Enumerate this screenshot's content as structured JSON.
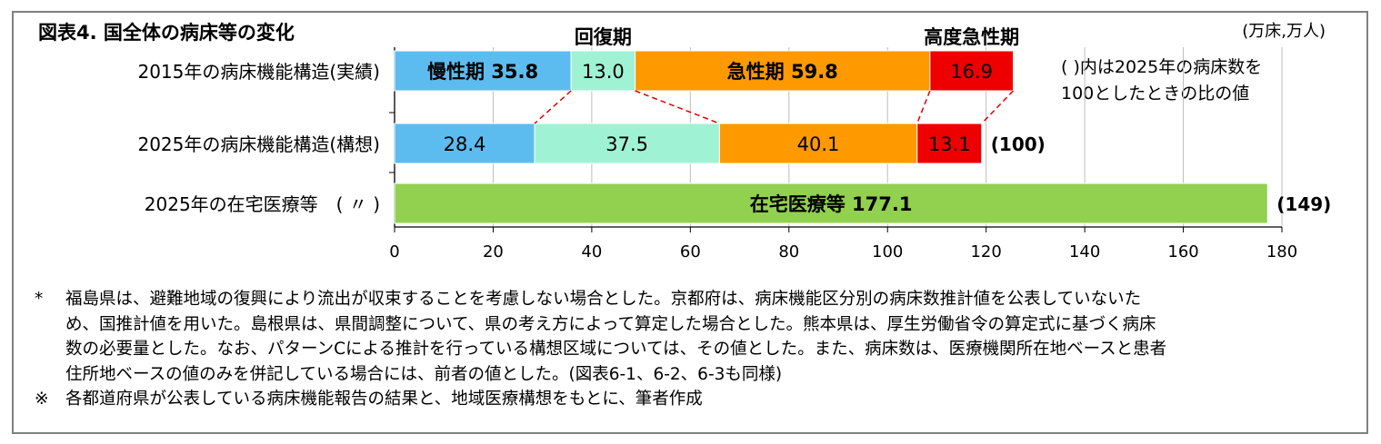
{
  "title": "図表4. 国全体の病床等の変化",
  "unit": "(万床,万人)",
  "footnote_ratio": [
    "( )内は2025年の病床数を",
    "100としたときの比の値"
  ],
  "chart_data": {
    "type": "bar",
    "orientation": "horizontal",
    "stacked": true,
    "xlim": [
      0,
      180
    ],
    "ticks": [
      0,
      20,
      40,
      60,
      80,
      100,
      120,
      140,
      160,
      180
    ],
    "grid": true,
    "rows": [
      {
        "label": "2015年の病床機能構造(実績)",
        "segments": [
          {
            "name": "慢性期",
            "value": 35.8,
            "label": "慢性期 35.8",
            "color": "#5cbcf0"
          },
          {
            "name": "回復期",
            "value": 13.0,
            "label": "13.0",
            "color": "#9ff2d3"
          },
          {
            "name": "急性期",
            "value": 59.8,
            "label": "急性期 59.8",
            "color": "#ff9900"
          },
          {
            "name": "高度急性期",
            "value": 16.9,
            "label": "16.9",
            "color": "#ee0000"
          }
        ],
        "ratio": ""
      },
      {
        "label": "2025年の病床機能構造(構想)",
        "segments": [
          {
            "name": "慢性期",
            "value": 28.4,
            "label": "28.4",
            "color": "#5cbcf0"
          },
          {
            "name": "回復期",
            "value": 37.5,
            "label": "37.5",
            "color": "#9ff2d3"
          },
          {
            "name": "急性期",
            "value": 40.1,
            "label": "40.1",
            "color": "#ff9900"
          },
          {
            "name": "高度急性期",
            "value": 13.1,
            "label": "13.1",
            "color": "#ee0000"
          }
        ],
        "ratio": "(100)"
      },
      {
        "label": "2025年の在宅医療等　( 〃 )",
        "segments": [
          {
            "name": "在宅医療等",
            "value": 177.1,
            "label": "在宅医療等 177.1",
            "color": "#92d050"
          }
        ],
        "ratio": "(149)"
      }
    ],
    "callouts": [
      "回復期",
      "高度急性期"
    ]
  },
  "notes": [
    {
      "mark": "*",
      "lines": [
        "福島県は、避難地域の復興により流出が収束することを考慮しない場合とした。京都府は、病床機能区分別の病床数推計値を公表していないた",
        "め、国推計値を用いた。島根県は、県間調整について、県の考え方によって算定した場合とした。熊本県は、厚生労働省令の算定式に基づく病床",
        "数の必要量とした。なお、パターンCによる推計を行っている構想区域については、その値とした。また、病床数は、医療機関所在地ベースと患者",
        "住所地ベースの値のみを併記している場合には、前者の値とした。(図表6-1、6-2、6-3も同様)"
      ]
    },
    {
      "mark": "※",
      "lines": [
        "各都道府県が公表している病床機能報告の結果と、地域医療構想をもとに、筆者作成"
      ]
    }
  ]
}
